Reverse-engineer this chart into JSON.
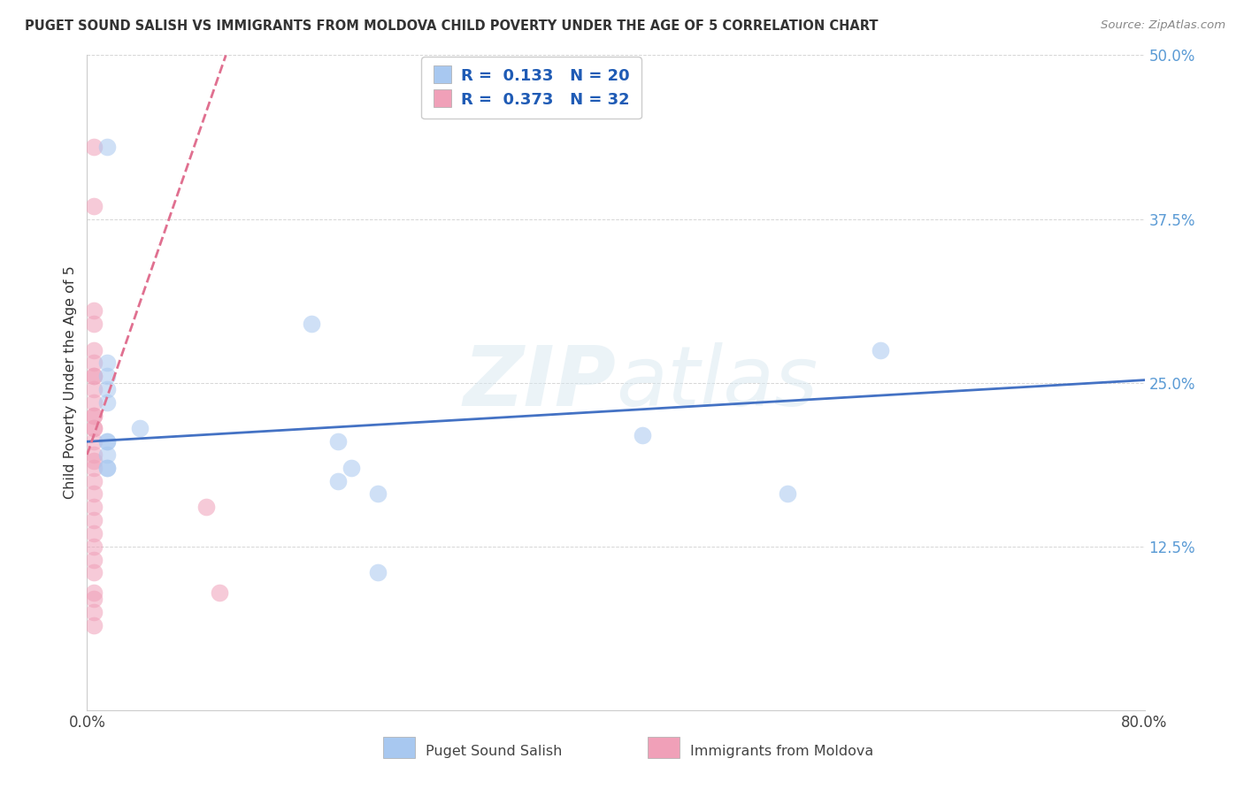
{
  "title": "PUGET SOUND SALISH VS IMMIGRANTS FROM MOLDOVA CHILD POVERTY UNDER THE AGE OF 5 CORRELATION CHART",
  "source": "Source: ZipAtlas.com",
  "ylabel": "Child Poverty Under the Age of 5",
  "xlim": [
    0.0,
    0.8
  ],
  "ylim": [
    0.0,
    0.5
  ],
  "xticks": [
    0.0,
    0.2,
    0.4,
    0.6,
    0.8
  ],
  "xticklabels": [
    "0.0%",
    "",
    "",
    "",
    "80.0%"
  ],
  "yticks": [
    0.0,
    0.125,
    0.25,
    0.375,
    0.5
  ],
  "yticklabels": [
    "",
    "12.5%",
    "25.0%",
    "37.5%",
    "50.0%"
  ],
  "blue_color": "#A8C8F0",
  "pink_color": "#F0A0B8",
  "line_blue": "#4472C4",
  "line_pink": "#E07090",
  "background": "#FFFFFF",
  "legend_R1": "R =  0.133",
  "legend_N1": "N = 20",
  "legend_R2": "R =  0.373",
  "legend_N2": "N = 32",
  "label1": "Puget Sound Salish",
  "label2": "Immigrants from Moldova",
  "blue_x": [
    0.015,
    0.17,
    0.015,
    0.015,
    0.015,
    0.015,
    0.04,
    0.015,
    0.19,
    0.015,
    0.015,
    0.015,
    0.015,
    0.2,
    0.42,
    0.19,
    0.22,
    0.22,
    0.53,
    0.6
  ],
  "blue_y": [
    0.43,
    0.295,
    0.265,
    0.255,
    0.245,
    0.235,
    0.215,
    0.205,
    0.205,
    0.205,
    0.195,
    0.185,
    0.185,
    0.185,
    0.21,
    0.175,
    0.165,
    0.105,
    0.165,
    0.275
  ],
  "pink_x": [
    0.005,
    0.005,
    0.005,
    0.005,
    0.005,
    0.005,
    0.005,
    0.005,
    0.005,
    0.005,
    0.005,
    0.005,
    0.005,
    0.005,
    0.005,
    0.005,
    0.005,
    0.005,
    0.005,
    0.005,
    0.005,
    0.005,
    0.005,
    0.005,
    0.005,
    0.005,
    0.005,
    0.005,
    0.005,
    0.005,
    0.09,
    0.1
  ],
  "pink_y": [
    0.43,
    0.385,
    0.305,
    0.295,
    0.275,
    0.265,
    0.255,
    0.255,
    0.245,
    0.235,
    0.225,
    0.225,
    0.215,
    0.215,
    0.205,
    0.195,
    0.19,
    0.185,
    0.175,
    0.165,
    0.155,
    0.145,
    0.135,
    0.125,
    0.115,
    0.105,
    0.09,
    0.085,
    0.075,
    0.065,
    0.155,
    0.09
  ],
  "blue_trend_x": [
    0.0,
    0.8
  ],
  "blue_trend_y": [
    0.205,
    0.252
  ],
  "pink_trend_x": [
    0.0,
    0.105
  ],
  "pink_trend_y": [
    0.195,
    0.5
  ],
  "watermark_top": "ZIP",
  "watermark_bot": "atlas",
  "marker_size": 200,
  "marker_alpha": 0.55
}
